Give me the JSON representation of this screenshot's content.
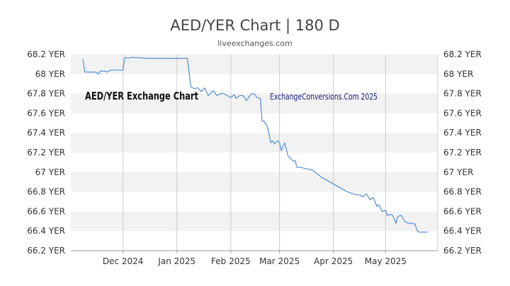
{
  "page": {
    "title": "AED/YER Chart | 180 D",
    "subtitle": "liveexchanges.com"
  },
  "colors": {
    "line": "#4f8fd6",
    "band": "#f2f2f2",
    "grid": "#cccccc",
    "axis": "#999999",
    "text": "#333333",
    "watermark_left": "#111111",
    "watermark_right": "#1a237e"
  },
  "chart_data": {
    "type": "line",
    "title": "AED/YER Chart | 180 D",
    "subtitle": "liveexchanges.com",
    "watermarks": [
      "AED/YER Exchange Chart",
      "ExchangeConversions.Com 2025"
    ],
    "y_range": [
      66.2,
      68.2
    ],
    "y_ticks": [
      66.2,
      66.4,
      66.6,
      66.8,
      67,
      67.2,
      67.4,
      67.6,
      67.8,
      68,
      68.2
    ],
    "y_tick_labels": [
      "66.2 YER",
      "66.4 YER",
      "66.6 YER",
      "66.8 YER",
      "67 YER",
      "67.2 YER",
      "67.4 YER",
      "67.6 YER",
      "67.8 YER",
      "68 YER",
      "68.2 YER"
    ],
    "x_range": [
      "2024-11-01",
      "2025-05-31"
    ],
    "x_ticks": [
      "2024-12-01",
      "2025-01-01",
      "2025-02-01",
      "2025-03-01",
      "2025-04-01",
      "2025-05-01"
    ],
    "x_tick_labels": [
      "Dec 2024",
      "Jan 2025",
      "Feb 2025",
      "Mar 2025",
      "Apr 2025",
      "May 2025"
    ],
    "grid": true,
    "series": [
      {
        "x": [
          "2024-11-08",
          "2024-11-09",
          "2024-11-10",
          "2024-11-15",
          "2024-11-17",
          "2024-11-18",
          "2024-11-20",
          "2024-11-22",
          "2024-11-24",
          "2024-11-25",
          "2024-11-30",
          "2024-12-01",
          "2024-12-02",
          "2024-12-04",
          "2024-12-06",
          "2024-12-15",
          "2024-12-25",
          "2025-01-01",
          "2025-01-06",
          "2025-01-07",
          "2025-01-09",
          "2025-01-11",
          "2025-01-13",
          "2025-01-15",
          "2025-01-17",
          "2025-01-19",
          "2025-01-22",
          "2025-01-24",
          "2025-01-26",
          "2025-01-28",
          "2025-02-01",
          "2025-02-03",
          "2025-02-04",
          "2025-02-06",
          "2025-02-08",
          "2025-02-10",
          "2025-02-12",
          "2025-02-13",
          "2025-02-15",
          "2025-02-16",
          "2025-02-18",
          "2025-02-19",
          "2025-02-20",
          "2025-02-22",
          "2025-02-24",
          "2025-02-25",
          "2025-02-26",
          "2025-02-28",
          "2025-03-01",
          "2025-03-02",
          "2025-03-04",
          "2025-03-06",
          "2025-03-07",
          "2025-03-09",
          "2025-03-10",
          "2025-03-11",
          "2025-03-13",
          "2025-03-15",
          "2025-03-20",
          "2025-03-25",
          "2025-03-30",
          "2025-04-04",
          "2025-04-09",
          "2025-04-14",
          "2025-04-16",
          "2025-04-18",
          "2025-04-20",
          "2025-04-22",
          "2025-04-24",
          "2025-04-26",
          "2025-04-27",
          "2025-04-29",
          "2025-05-01",
          "2025-05-02",
          "2025-05-04",
          "2025-05-05",
          "2025-05-07",
          "2025-05-08",
          "2025-05-10",
          "2025-05-12",
          "2025-05-14",
          "2025-05-16",
          "2025-05-18",
          "2025-05-19",
          "2025-05-20",
          "2025-05-23",
          "2025-05-25"
        ],
        "y": [
          68.15,
          68.02,
          68.02,
          68.02,
          68.0,
          68.03,
          68.03,
          68.02,
          68.04,
          68.04,
          68.04,
          68.04,
          68.17,
          68.16,
          68.17,
          68.16,
          68.16,
          68.16,
          68.16,
          68.16,
          67.87,
          67.85,
          67.86,
          67.82,
          67.86,
          67.78,
          67.83,
          67.78,
          67.8,
          67.8,
          67.76,
          67.79,
          67.75,
          67.78,
          67.78,
          67.73,
          67.78,
          67.8,
          67.79,
          67.76,
          67.75,
          67.52,
          67.52,
          67.47,
          67.3,
          67.32,
          67.29,
          67.32,
          67.3,
          67.22,
          67.3,
          67.16,
          67.15,
          67.11,
          67.12,
          67.05,
          67.05,
          67.04,
          67.02,
          66.95,
          66.9,
          66.85,
          66.8,
          66.77,
          66.77,
          66.75,
          66.78,
          66.72,
          66.74,
          66.65,
          66.67,
          66.6,
          66.61,
          66.56,
          66.57,
          66.56,
          66.48,
          66.55,
          66.56,
          66.5,
          66.48,
          66.48,
          66.47,
          66.41,
          66.39,
          66.39,
          66.39
        ]
      }
    ]
  }
}
